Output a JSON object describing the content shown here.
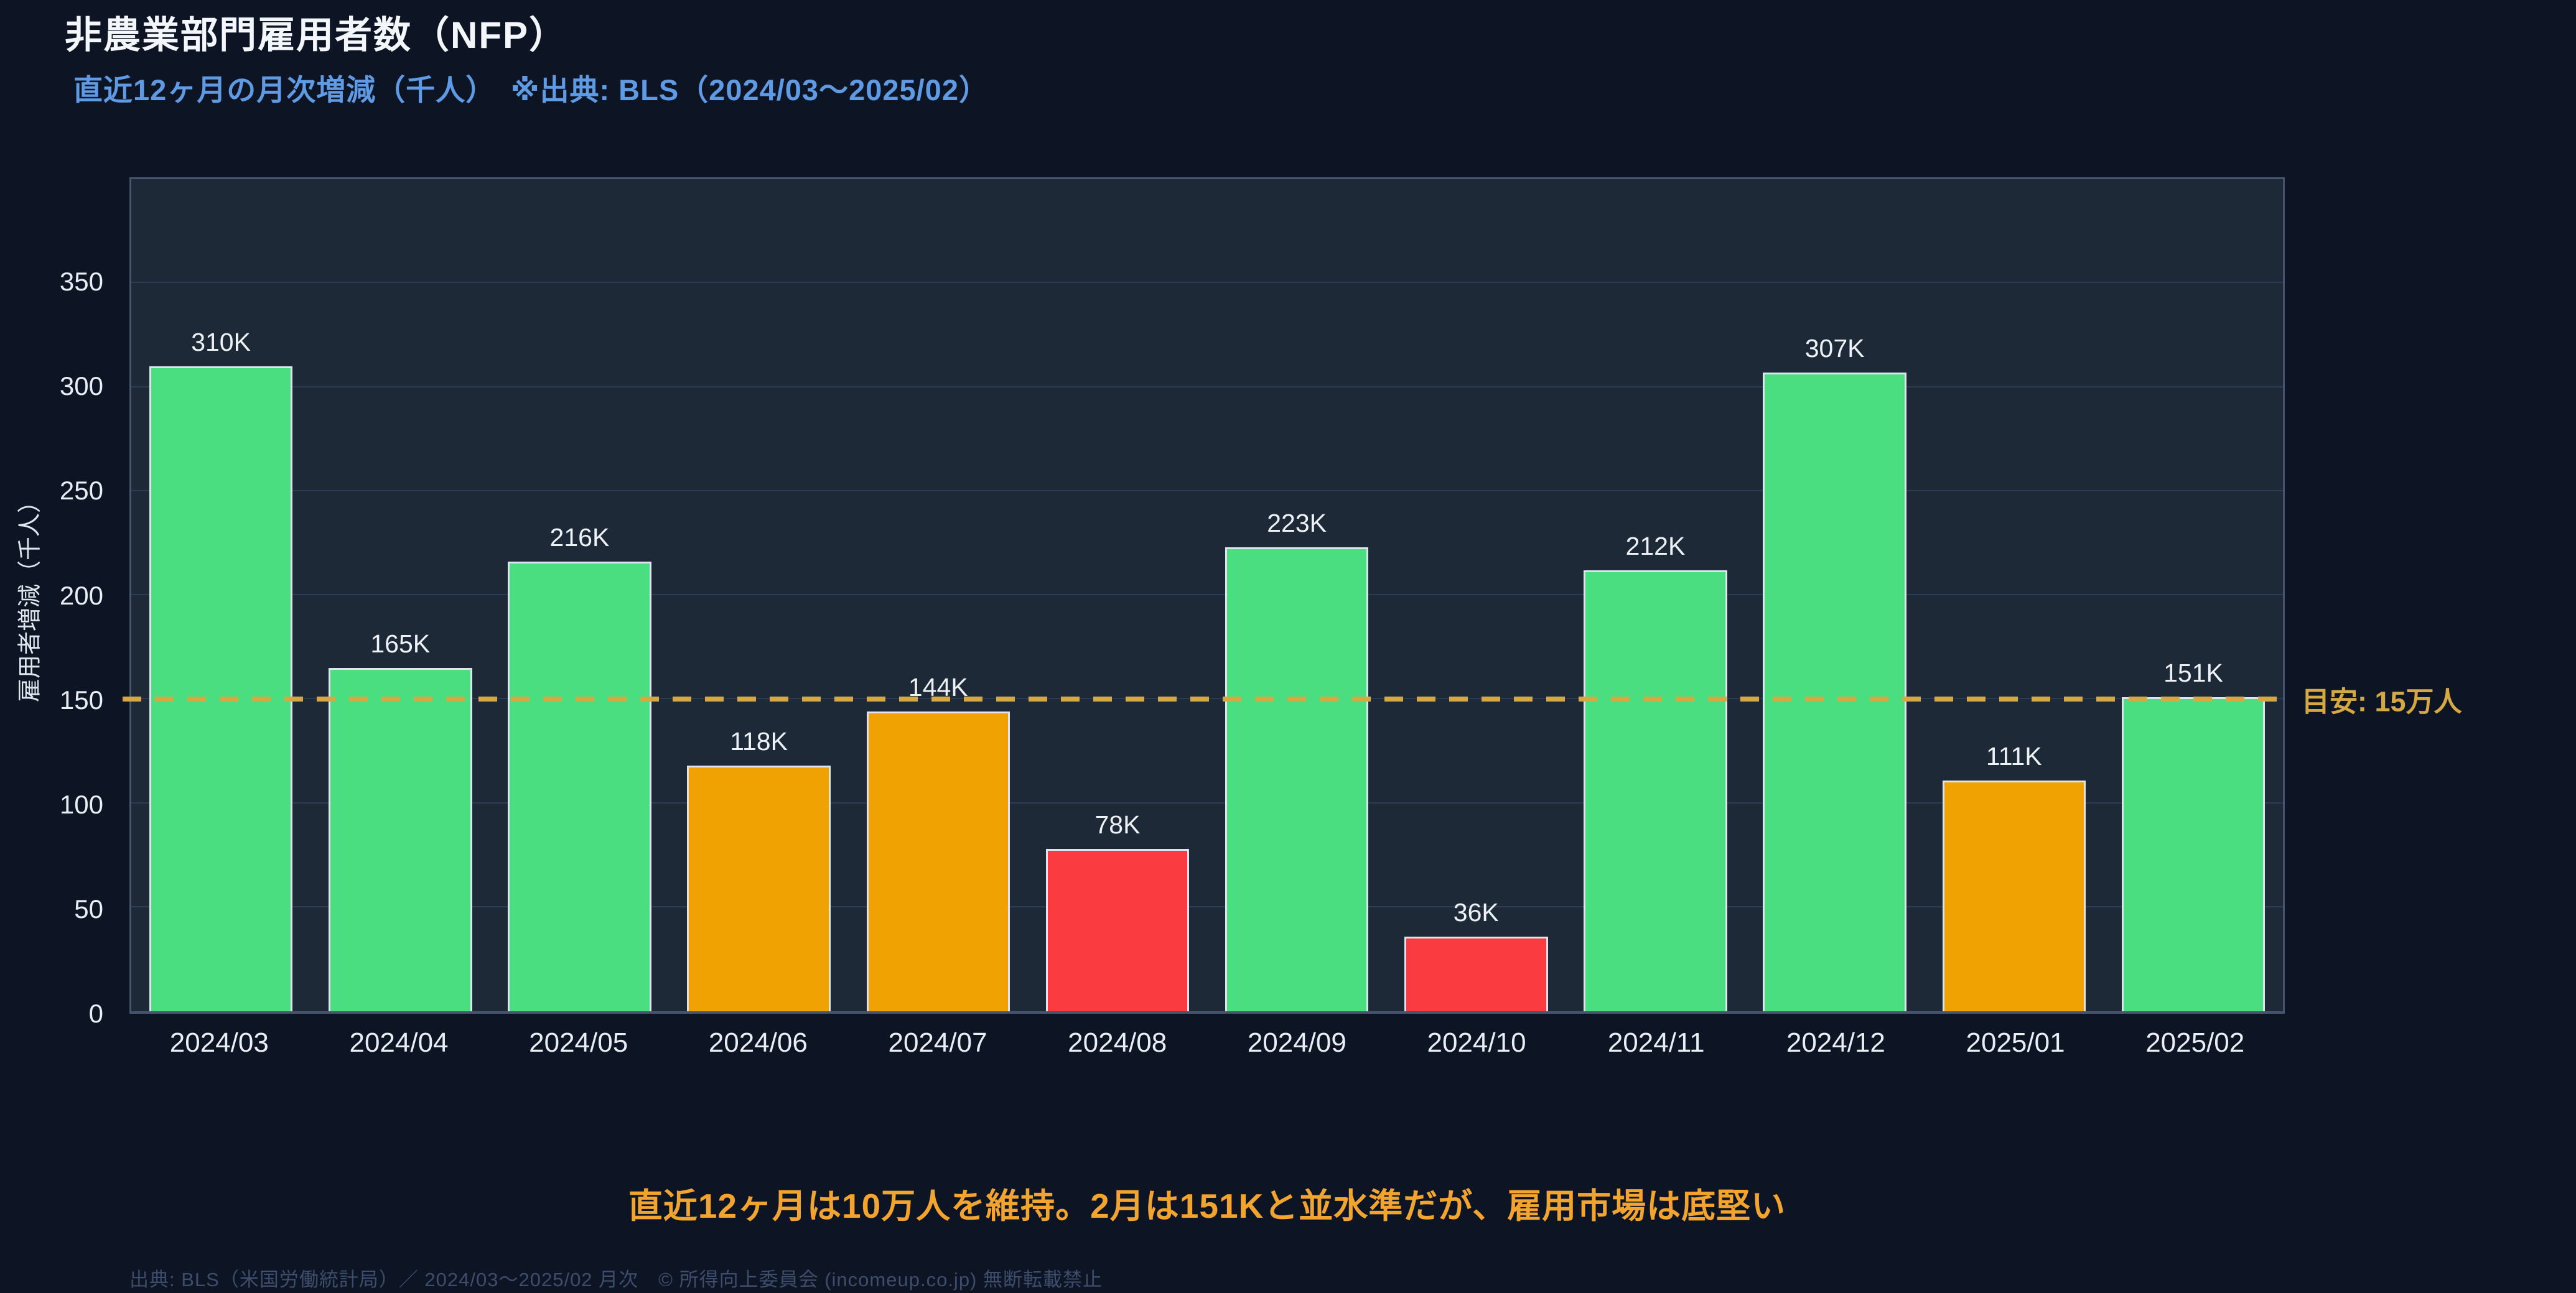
{
  "page": {
    "title": "非農業部門雇用者数（NFP）",
    "subtitle": "直近12ヶ月の月次増減（千人）　※出典: BLS（2024/03〜2025/02）",
    "message": "直近12ヶ月は10万人を維持。2月は151Kと並水準だが、雇用市場は底堅い",
    "footer": "出典: BLS（米国労働統計局）／ 2024/03〜2025/02 月次　© 所得向上委員会 (incomeup.co.jp) 無断転載禁止"
  },
  "palette": {
    "background": "#0d1524",
    "plot_background": "#1e2938",
    "grid": "#2e3b54",
    "border": "#46546e",
    "green": "#4ade80",
    "orange": "#f0a202",
    "red": "#fa3b40",
    "bar_edge": "#dde4ee",
    "gold": "#d5a842",
    "subtitle_blue": "#5e9be4",
    "message_orange": "#f2a42e",
    "text": "#e9eef5",
    "footer_text": "#3d4d6b"
  },
  "chart_data": {
    "type": "bar",
    "title": "非農業部門雇用者数（NFP）",
    "subtitle": "直近12ヶ月の月次増減（千人）　※出典: BLS（2024/03〜2025/02）",
    "xlabel": "",
    "ylabel": "雇用者増減（千人）",
    "ylim": [
      0,
      400
    ],
    "yticks": [
      0,
      50,
      100,
      150,
      200,
      250,
      300,
      350
    ],
    "grid": "horizontal",
    "legend": "none",
    "categories": [
      "2024/03",
      "2024/04",
      "2024/05",
      "2024/06",
      "2024/07",
      "2024/08",
      "2024/09",
      "2024/10",
      "2024/11",
      "2024/12",
      "2025/01",
      "2025/02"
    ],
    "values": [
      310,
      165,
      216,
      118,
      144,
      78,
      223,
      36,
      212,
      307,
      111,
      151
    ],
    "bar_labels": [
      "310K",
      "165K",
      "216K",
      "118K",
      "144K",
      "78K",
      "223K",
      "36K",
      "212K",
      "307K",
      "111K",
      "151K"
    ],
    "bar_colors": [
      "green",
      "green",
      "green",
      "orange",
      "orange",
      "red",
      "green",
      "red",
      "green",
      "green",
      "orange",
      "green"
    ],
    "guideline": {
      "value": 150,
      "label": "目安: 15万人"
    }
  }
}
